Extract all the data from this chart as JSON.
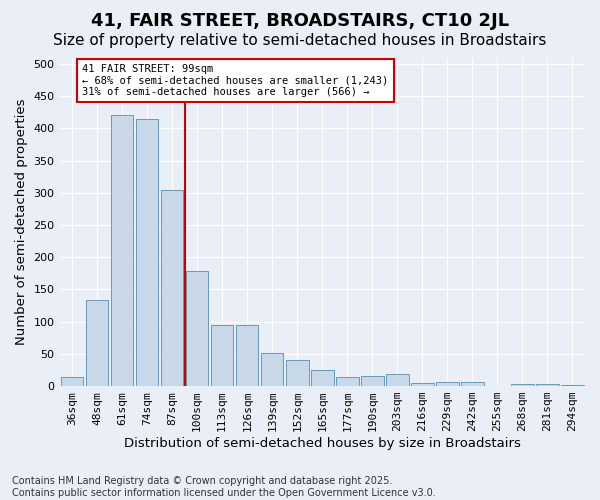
{
  "title": "41, FAIR STREET, BROADSTAIRS, CT10 2JL",
  "subtitle": "Size of property relative to semi-detached houses in Broadstairs",
  "xlabel": "Distribution of semi-detached houses by size in Broadstairs",
  "ylabel": "Number of semi-detached properties",
  "bins": [
    "36sqm",
    "48sqm",
    "61sqm",
    "74sqm",
    "87sqm",
    "100sqm",
    "113sqm",
    "126sqm",
    "139sqm",
    "152sqm",
    "165sqm",
    "177sqm",
    "190sqm",
    "203sqm",
    "216sqm",
    "229sqm",
    "242sqm",
    "255sqm",
    "268sqm",
    "281sqm",
    "294sqm"
  ],
  "values": [
    14,
    134,
    420,
    415,
    305,
    178,
    95,
    95,
    52,
    41,
    25,
    14,
    15,
    18,
    5,
    6,
    6,
    0,
    4,
    3,
    2
  ],
  "bar_color": "#c8d8e8",
  "bar_edge_color": "#6699bb",
  "highlight_index": 5,
  "highlight_line_color": "#cc0000",
  "annotation_text": "41 FAIR STREET: 99sqm\n← 68% of semi-detached houses are smaller (1,243)\n31% of semi-detached houses are larger (566) →",
  "footnote": "Contains HM Land Registry data © Crown copyright and database right 2025.\nContains public sector information licensed under the Open Government Licence v3.0.",
  "ylim": [
    0,
    510
  ],
  "yticks": [
    0,
    50,
    100,
    150,
    200,
    250,
    300,
    350,
    400,
    450,
    500
  ],
  "background_color": "#eaeff7",
  "plot_background_color": "#eaeff7",
  "title_fontsize": 13,
  "subtitle_fontsize": 11,
  "axis_label_fontsize": 9.5,
  "tick_fontsize": 8,
  "footnote_fontsize": 7
}
